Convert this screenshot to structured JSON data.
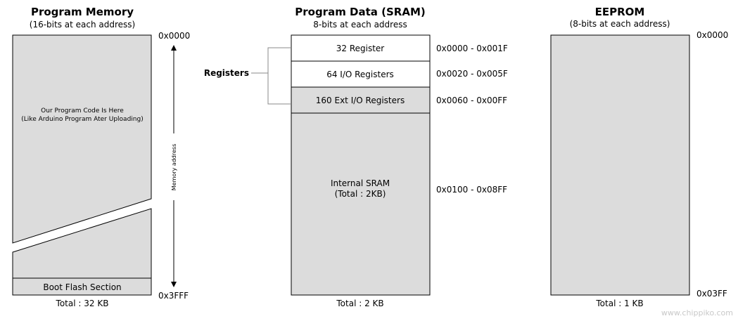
{
  "program_memory": {
    "title": "Program Memory",
    "subtitle": "(16-bits at each address)",
    "start_address": "0x0000",
    "end_address": "0x3FFF",
    "code_line1": "Our Program Code Is Here",
    "code_line2": "(Like Arduino Program Ater Uploading)",
    "boot_section": "Boot Flash Section",
    "axis_label": "Memory address",
    "total": "Total : 32 KB"
  },
  "sram": {
    "title": "Program Data (SRAM)",
    "subtitle": "8-bits at each address",
    "registers_label": "Registers",
    "blocks": [
      {
        "label": "32 Register",
        "range": "0x0000 - 0x001F"
      },
      {
        "label": "64 I/O Registers",
        "range": "0x0020 - 0x005F"
      },
      {
        "label": "160 Ext I/O Registers",
        "range": "0x0060 - 0x00FF"
      }
    ],
    "internal_line1": "Internal SRAM",
    "internal_line2": "(Total : 2KB)",
    "internal_range": "0x0100 - 0x08FF",
    "total": "Total : 2 KB"
  },
  "eeprom": {
    "title": "EEPROM",
    "subtitle": "(8-bits at each address)",
    "start_address": "0x0000",
    "end_address": "0x03FF",
    "total": "Total : 1 KB"
  },
  "watermark": "www.chippiko.com",
  "colors": {
    "fill": "#dcdcdc",
    "white": "#ffffff",
    "stroke": "#000000",
    "bracket": "#888888",
    "watermark": "#c8c8c8"
  }
}
